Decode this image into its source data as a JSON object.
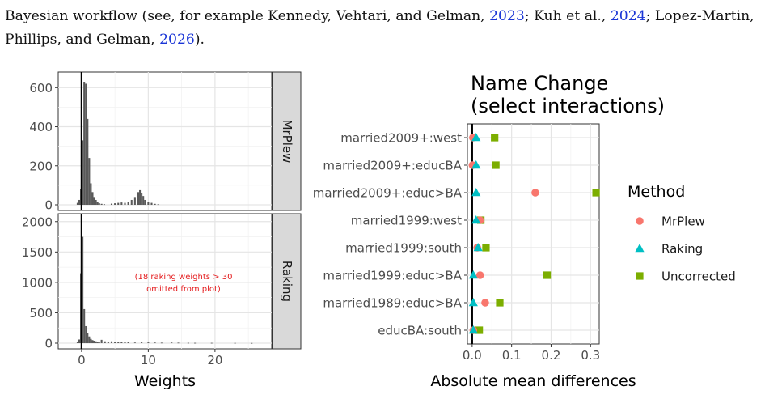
{
  "paragraph": {
    "line1_prefix": "Bayesian workflow (see, for example Kennedy, Vehtari, and Gelman, ",
    "cite1_year": "2023",
    "line1_mid": "; Kuh et al., ",
    "cite2_year": "2024",
    "line1_suffix": "; Lopez-Martin,",
    "line2_prefix": "Phillips, and Gelman, ",
    "cite3_year": "2026",
    "line2_suffix": ")."
  },
  "colors": {
    "link": "#1a35d6",
    "mrplew": "#f8766d",
    "raking": "#00bfc4",
    "uncorrected": "#7cae00",
    "bars": "#595959",
    "panel_bg": "#ebebeb",
    "strip_bg": "#d9d9d9",
    "annotation": "#e41a1c"
  },
  "chart_data": [
    {
      "type": "bar",
      "title": "",
      "xlabel": "Weights",
      "ylabel": "",
      "facets": [
        "MrPlew",
        "Raking"
      ],
      "x_ticks": [
        0,
        10,
        20
      ],
      "xlim": [
        -3.5,
        28.5
      ],
      "bin_width": 0.25,
      "panels": [
        {
          "facet": "MrPlew",
          "ylim": [
            0,
            680
          ],
          "y_ticks": [
            0,
            200,
            400,
            600
          ],
          "bins": [
            {
              "x": -0.6,
              "y": 10
            },
            {
              "x": -0.35,
              "y": 25
            },
            {
              "x": -0.1,
              "y": 80
            },
            {
              "x": 0.15,
              "y": 330
            },
            {
              "x": 0.4,
              "y": 630
            },
            {
              "x": 0.65,
              "y": 620
            },
            {
              "x": 0.9,
              "y": 440
            },
            {
              "x": 1.15,
              "y": 240
            },
            {
              "x": 1.4,
              "y": 110
            },
            {
              "x": 1.65,
              "y": 65
            },
            {
              "x": 1.9,
              "y": 40
            },
            {
              "x": 2.15,
              "y": 25
            },
            {
              "x": 2.4,
              "y": 15
            },
            {
              "x": 2.65,
              "y": 8
            },
            {
              "x": 3.0,
              "y": 5
            },
            {
              "x": 3.4,
              "y": 3
            },
            {
              "x": 4.5,
              "y": 6
            },
            {
              "x": 5.0,
              "y": 8
            },
            {
              "x": 5.5,
              "y": 10
            },
            {
              "x": 6.0,
              "y": 12
            },
            {
              "x": 6.5,
              "y": 10
            },
            {
              "x": 7.0,
              "y": 15
            },
            {
              "x": 7.5,
              "y": 25
            },
            {
              "x": 8.0,
              "y": 40
            },
            {
              "x": 8.5,
              "y": 65
            },
            {
              "x": 8.75,
              "y": 75
            },
            {
              "x": 9.0,
              "y": 60
            },
            {
              "x": 9.25,
              "y": 45
            },
            {
              "x": 9.5,
              "y": 25
            },
            {
              "x": 10.0,
              "y": 15
            },
            {
              "x": 10.5,
              "y": 10
            },
            {
              "x": 11.0,
              "y": 5
            },
            {
              "x": 11.5,
              "y": 3
            }
          ]
        },
        {
          "facet": "Raking",
          "ylim": [
            0,
            2130
          ],
          "y_ticks": [
            0,
            500,
            1000,
            1500,
            2000
          ],
          "annotation": "(18 raking weights > 30\nomitted from plot)",
          "bins": [
            {
              "x": -0.6,
              "y": 15
            },
            {
              "x": -0.35,
              "y": 60
            },
            {
              "x": -0.1,
              "y": 1150
            },
            {
              "x": 0.15,
              "y": 1750
            },
            {
              "x": 0.4,
              "y": 560
            },
            {
              "x": 0.65,
              "y": 280
            },
            {
              "x": 0.9,
              "y": 170
            },
            {
              "x": 1.15,
              "y": 110
            },
            {
              "x": 1.4,
              "y": 70
            },
            {
              "x": 1.65,
              "y": 50
            },
            {
              "x": 1.9,
              "y": 40
            },
            {
              "x": 2.15,
              "y": 30
            },
            {
              "x": 2.4,
              "y": 25
            },
            {
              "x": 2.65,
              "y": 20
            },
            {
              "x": 3.0,
              "y": 55
            },
            {
              "x": 3.5,
              "y": 30
            },
            {
              "x": 4.0,
              "y": 25
            },
            {
              "x": 4.5,
              "y": 30
            },
            {
              "x": 5.0,
              "y": 20
            },
            {
              "x": 5.5,
              "y": 20
            },
            {
              "x": 6.0,
              "y": 20
            },
            {
              "x": 6.5,
              "y": 15
            },
            {
              "x": 7.0,
              "y": 15
            },
            {
              "x": 8.0,
              "y": 10
            },
            {
              "x": 9.0,
              "y": 15
            },
            {
              "x": 10.0,
              "y": 12
            },
            {
              "x": 11.0,
              "y": 10
            },
            {
              "x": 12.0,
              "y": 8
            },
            {
              "x": 13.5,
              "y": 10
            },
            {
              "x": 14.5,
              "y": 8
            },
            {
              "x": 16.0,
              "y": 6
            },
            {
              "x": 17.0,
              "y": 5
            },
            {
              "x": 19.5,
              "y": 5
            },
            {
              "x": 23.0,
              "y": 4
            },
            {
              "x": 25.5,
              "y": 3
            }
          ]
        }
      ]
    },
    {
      "type": "scatter",
      "title": "Name Change\n(select interactions)",
      "xlabel": "Absolute mean differences",
      "ylabel": "",
      "xlim": [
        -0.012,
        0.322
      ],
      "x_ticks": [
        0.0,
        0.1,
        0.2,
        0.3
      ],
      "x_tick_labels": [
        "0.0",
        "0.1",
        "0.2",
        "0.3"
      ],
      "categories": [
        "married2009+:west",
        "married2009+:educBA",
        "married2009+:educ>BA",
        "married1999:west",
        "married1999:south",
        "married1999:educ>BA",
        "married1989:educ>BA",
        "educBA:south"
      ],
      "legend": {
        "title": "Method",
        "position": "right"
      },
      "series": [
        {
          "name": "MrPlew",
          "shape": "circle",
          "values": [
            0.002,
            0.001,
            0.16,
            0.02,
            0.013,
            0.02,
            0.033,
            0.003
          ]
        },
        {
          "name": "Raking",
          "shape": "triangle",
          "values": [
            0.01,
            0.01,
            0.01,
            0.01,
            0.015,
            0.003,
            0.003,
            0.003
          ]
        },
        {
          "name": "Uncorrected",
          "shape": "square",
          "values": [
            0.057,
            0.06,
            0.314,
            0.022,
            0.035,
            0.19,
            0.07,
            0.018
          ]
        }
      ]
    }
  ]
}
